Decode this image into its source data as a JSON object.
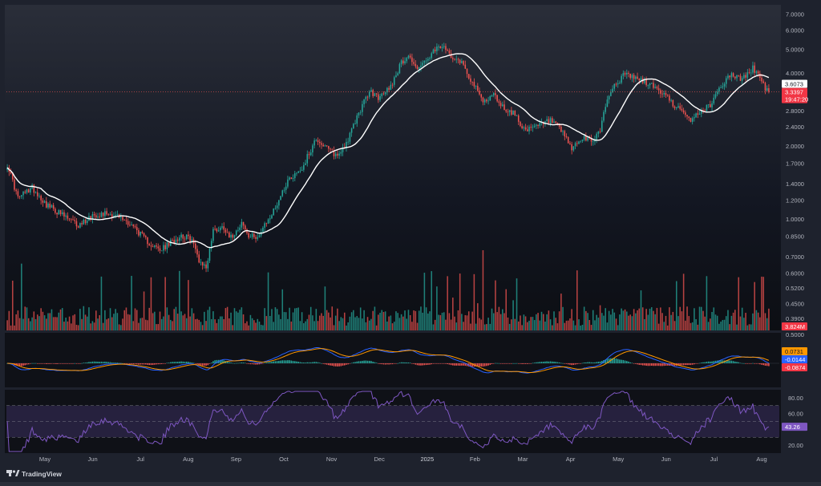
{
  "watermark": "TradingView",
  "chart_data": {
    "type": "candlestick",
    "colors": {
      "up": "#26a69a",
      "down": "#ef5350",
      "ma": "#ffffff",
      "macd_line": "#2962ff",
      "signal_line": "#ff9800",
      "rsi_line": "#7e57c2",
      "rsi_band": "#3b2f5e",
      "price_tag": "#f23645",
      "ma_tag": "#ffffff",
      "macd_tag": "#2962ff",
      "signal_tag": "#ff9800",
      "hist_tag": "#f23645",
      "rsi_tag": "#7e57c2"
    },
    "price_axis": {
      "scale": "log",
      "ticks": [
        "7.0000",
        "6.0000",
        "5.0000",
        "4.0000",
        "3.6073",
        "3.3397",
        "2.8000",
        "2.4000",
        "2.0000",
        "1.7000",
        "1.4000",
        "1.2000",
        "1.0000",
        "0.8500",
        "0.7000",
        "0.6000",
        "0.5200",
        "0.4500",
        "0.3900"
      ],
      "tick_values": [
        7.0,
        6.0,
        5.0,
        4.0,
        2.8,
        2.4,
        2.0,
        1.7,
        1.4,
        1.2,
        1.0,
        0.85,
        0.7,
        0.6,
        0.52,
        0.45,
        0.39
      ],
      "range": [
        0.37,
        7.4
      ]
    },
    "last_price": "3.3397",
    "countdown": "19:47:20",
    "ma_value": "3.6073",
    "volume_value": "3.824M",
    "macd": {
      "axis_top": "0.5000",
      "signal": "0.0731",
      "macd": "-0.0144",
      "histogram": "-0.0874"
    },
    "rsi": {
      "ticks": [
        "80.00",
        "60.00",
        "20.00"
      ],
      "tick_values": [
        80,
        60,
        20
      ],
      "value": "43.26",
      "upper": 70,
      "middle": 50,
      "lower": 30
    },
    "x_labels": [
      "May",
      "Jun",
      "Jul",
      "Aug",
      "Sep",
      "Oct",
      "Nov",
      "Dec",
      "2025",
      "Feb",
      "Mar",
      "Apr",
      "May",
      "Jun",
      "Jul",
      "Aug"
    ],
    "close_anchors": [
      {
        "d": 0,
        "v": 1.68
      },
      {
        "d": 6,
        "v": 1.22
      },
      {
        "d": 14,
        "v": 1.35
      },
      {
        "d": 22,
        "v": 1.15
      },
      {
        "d": 30,
        "v": 1.05
      },
      {
        "d": 40,
        "v": 0.94
      },
      {
        "d": 48,
        "v": 1.04
      },
      {
        "d": 56,
        "v": 1.06
      },
      {
        "d": 62,
        "v": 1.03
      },
      {
        "d": 70,
        "v": 0.95
      },
      {
        "d": 78,
        "v": 0.82
      },
      {
        "d": 86,
        "v": 0.74
      },
      {
        "d": 92,
        "v": 0.8
      },
      {
        "d": 98,
        "v": 0.86
      },
      {
        "d": 104,
        "v": 0.82
      },
      {
        "d": 108,
        "v": 0.68
      },
      {
        "d": 112,
        "v": 0.63
      },
      {
        "d": 116,
        "v": 0.9
      },
      {
        "d": 122,
        "v": 0.93
      },
      {
        "d": 126,
        "v": 0.84
      },
      {
        "d": 132,
        "v": 0.97
      },
      {
        "d": 136,
        "v": 0.84
      },
      {
        "d": 142,
        "v": 0.86
      },
      {
        "d": 150,
        "v": 1.08
      },
      {
        "d": 158,
        "v": 1.45
      },
      {
        "d": 166,
        "v": 1.62
      },
      {
        "d": 174,
        "v": 2.15
      },
      {
        "d": 180,
        "v": 1.95
      },
      {
        "d": 186,
        "v": 1.82
      },
      {
        "d": 192,
        "v": 2.12
      },
      {
        "d": 198,
        "v": 2.75
      },
      {
        "d": 204,
        "v": 3.35
      },
      {
        "d": 210,
        "v": 3.15
      },
      {
        "d": 216,
        "v": 3.55
      },
      {
        "d": 222,
        "v": 4.4
      },
      {
        "d": 226,
        "v": 4.75
      },
      {
        "d": 230,
        "v": 4.2
      },
      {
        "d": 236,
        "v": 4.45
      },
      {
        "d": 240,
        "v": 4.85
      },
      {
        "d": 244,
        "v": 5.15
      },
      {
        "d": 250,
        "v": 4.75
      },
      {
        "d": 256,
        "v": 4.45
      },
      {
        "d": 262,
        "v": 3.65
      },
      {
        "d": 268,
        "v": 3.05
      },
      {
        "d": 274,
        "v": 3.25
      },
      {
        "d": 280,
        "v": 2.85
      },
      {
        "d": 286,
        "v": 2.7
      },
      {
        "d": 292,
        "v": 2.3
      },
      {
        "d": 298,
        "v": 2.4
      },
      {
        "d": 306,
        "v": 2.55
      },
      {
        "d": 312,
        "v": 2.3
      },
      {
        "d": 318,
        "v": 1.95
      },
      {
        "d": 324,
        "v": 2.15
      },
      {
        "d": 330,
        "v": 2.1
      },
      {
        "d": 334,
        "v": 2.35
      },
      {
        "d": 338,
        "v": 3.15
      },
      {
        "d": 342,
        "v": 3.55
      },
      {
        "d": 348,
        "v": 3.95
      },
      {
        "d": 354,
        "v": 3.8
      },
      {
        "d": 360,
        "v": 3.65
      },
      {
        "d": 366,
        "v": 3.45
      },
      {
        "d": 372,
        "v": 3.15
      },
      {
        "d": 378,
        "v": 2.85
      },
      {
        "d": 384,
        "v": 2.55
      },
      {
        "d": 390,
        "v": 2.75
      },
      {
        "d": 396,
        "v": 2.95
      },
      {
        "d": 402,
        "v": 3.55
      },
      {
        "d": 408,
        "v": 3.95
      },
      {
        "d": 414,
        "v": 3.75
      },
      {
        "d": 420,
        "v": 4.2
      },
      {
        "d": 424,
        "v": 3.8
      },
      {
        "d": 427,
        "v": 3.45
      },
      {
        "d": 429,
        "v": 3.3397
      }
    ],
    "days": 430
  }
}
